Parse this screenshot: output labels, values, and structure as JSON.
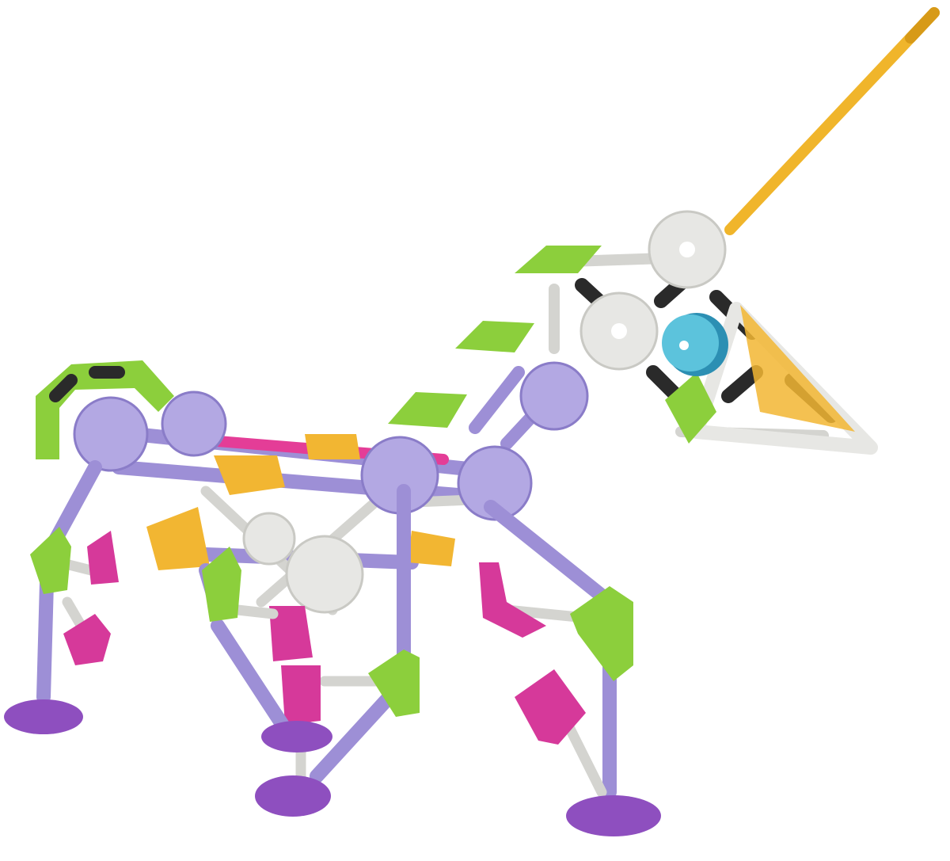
{
  "image": {
    "background": "#ffffff"
  },
  "palette": {
    "lavender": "#9d8fd6",
    "lavender_light": "#b3a8e3",
    "lime": "#8ccf3c",
    "magenta": "#d6399a",
    "yellow": "#f2b632",
    "white_part": "#e7e7e4",
    "grey_rod": "#d4d4d0",
    "black_clip": "#2a2a2a",
    "purple_foot": "#8e4fbf",
    "teal_eye": "#5cc3dc",
    "gold_horn": "#f0b52b",
    "pink_rod": "#e43d97"
  }
}
